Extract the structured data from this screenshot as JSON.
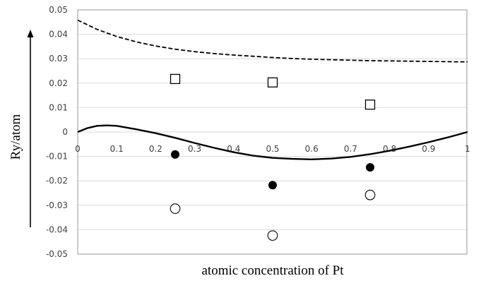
{
  "chart_data": {
    "type": "scatter",
    "title": "",
    "xlabel": "atomic concentration of Pt",
    "ylabel": "Ry/atom",
    "xlim": [
      0,
      1
    ],
    "ylim": [
      -0.05,
      0.05
    ],
    "grid": "horizontal",
    "x_ticks": [
      "0",
      "0.1",
      "0.2",
      "0.3",
      "0.4",
      "0.5",
      "0.6",
      "0.7",
      "0.8",
      "0.9",
      "1"
    ],
    "y_ticks": [
      "0.05",
      "0.04",
      "0.03",
      "0.02",
      "0.01",
      "0",
      "-0.01",
      "-0.02",
      "-0.03",
      "-0.04",
      "-0.05"
    ],
    "series": [
      {
        "marker": "open-square",
        "x": [
          0.25,
          0.5,
          0.75
        ],
        "y": [
          0.0217,
          0.0203,
          0.0112
        ]
      },
      {
        "marker": "filled-circle",
        "x": [
          0.25,
          0.5,
          0.75
        ],
        "y": [
          -0.0092,
          -0.0218,
          -0.0145
        ]
      },
      {
        "marker": "open-circle",
        "x": [
          0.25,
          0.5,
          0.75
        ],
        "y": [
          -0.0314,
          -0.0424,
          -0.0258
        ]
      },
      {
        "line": "dashed",
        "x": [
          0,
          0.05,
          0.1,
          0.15,
          0.2,
          0.25,
          0.3,
          0.35,
          0.4,
          0.45,
          0.5,
          0.55,
          0.6,
          0.65,
          0.7,
          0.75,
          0.8,
          0.85,
          0.9,
          0.95,
          1
        ],
        "y": [
          0.0458,
          0.042,
          0.0391,
          0.0369,
          0.0352,
          0.0339,
          0.0329,
          0.0321,
          0.0315,
          0.031,
          0.0305,
          0.0301,
          0.0298,
          0.0296,
          0.0294,
          0.0292,
          0.0291,
          0.029,
          0.0289,
          0.0288,
          0.0287
        ]
      },
      {
        "line": "solid",
        "x": [
          0,
          0.025,
          0.05,
          0.075,
          0.1,
          0.15,
          0.2,
          0.25,
          0.3,
          0.35,
          0.4,
          0.45,
          0.5,
          0.55,
          0.6,
          0.65,
          0.7,
          0.75,
          0.8,
          0.85,
          0.9,
          0.95,
          1
        ],
        "y": [
          0,
          0.0016,
          0.0025,
          0.0027,
          0.0025,
          0.0011,
          -0.0005,
          -0.0024,
          -0.0045,
          -0.0065,
          -0.0083,
          -0.0097,
          -0.0106,
          -0.011,
          -0.0112,
          -0.0109,
          -0.0102,
          -0.0091,
          -0.0077,
          -0.006,
          -0.0042,
          -0.0022,
          0
        ]
      }
    ]
  }
}
